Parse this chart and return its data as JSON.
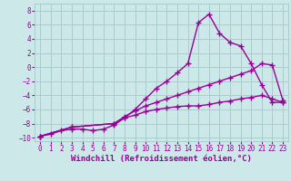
{
  "xlabel": "Windchill (Refroidissement éolien,°C)",
  "bg_color": "#cce8e8",
  "grid_color": "#aacccc",
  "line_color": "#990099",
  "xlim": [
    -0.5,
    23.5
  ],
  "ylim": [
    -10.5,
    9.0
  ],
  "xticks": [
    0,
    1,
    2,
    3,
    4,
    5,
    6,
    7,
    8,
    9,
    10,
    11,
    12,
    13,
    14,
    15,
    16,
    17,
    18,
    19,
    20,
    21,
    22,
    23
  ],
  "yticks": [
    -10,
    -8,
    -6,
    -4,
    -2,
    0,
    2,
    4,
    6,
    8
  ],
  "line1_x": [
    0,
    1,
    2,
    3,
    4,
    5,
    6,
    7,
    8,
    9,
    10,
    11,
    12,
    13,
    14,
    15,
    16,
    17,
    18,
    19,
    20,
    21,
    22,
    23
  ],
  "line1_y": [
    -9.8,
    -9.5,
    -9.0,
    -8.8,
    -8.8,
    -9.0,
    -8.8,
    -8.2,
    -7.2,
    -6.0,
    -4.5,
    -3.0,
    -2.0,
    -0.8,
    0.5,
    6.3,
    7.5,
    4.8,
    3.5,
    3.0,
    0.5,
    -2.5,
    -5.0,
    -5.0
  ],
  "line2_x": [
    0,
    3,
    7,
    8,
    9,
    10,
    11,
    12,
    13,
    14,
    15,
    16,
    17,
    18,
    19,
    20,
    21,
    22,
    23
  ],
  "line2_y": [
    -9.8,
    -8.5,
    -8.0,
    -7.0,
    -6.2,
    -5.5,
    -5.0,
    -4.5,
    -4.0,
    -3.5,
    -3.0,
    -2.5,
    -2.0,
    -1.5,
    -1.0,
    -0.5,
    0.5,
    0.3,
    -4.7
  ],
  "line3_x": [
    0,
    3,
    7,
    8,
    9,
    10,
    11,
    12,
    13,
    14,
    15,
    16,
    17,
    18,
    19,
    20,
    21,
    22,
    23
  ],
  "line3_y": [
    -9.8,
    -8.5,
    -8.0,
    -7.2,
    -6.8,
    -6.3,
    -6.0,
    -5.8,
    -5.6,
    -5.5,
    -5.5,
    -5.3,
    -5.0,
    -4.8,
    -4.5,
    -4.3,
    -4.0,
    -4.5,
    -5.0
  ],
  "marker": "+",
  "markersize": 4,
  "linewidth": 1.0,
  "tick_fontsize": 5.5,
  "xlabel_fontsize": 6.5
}
